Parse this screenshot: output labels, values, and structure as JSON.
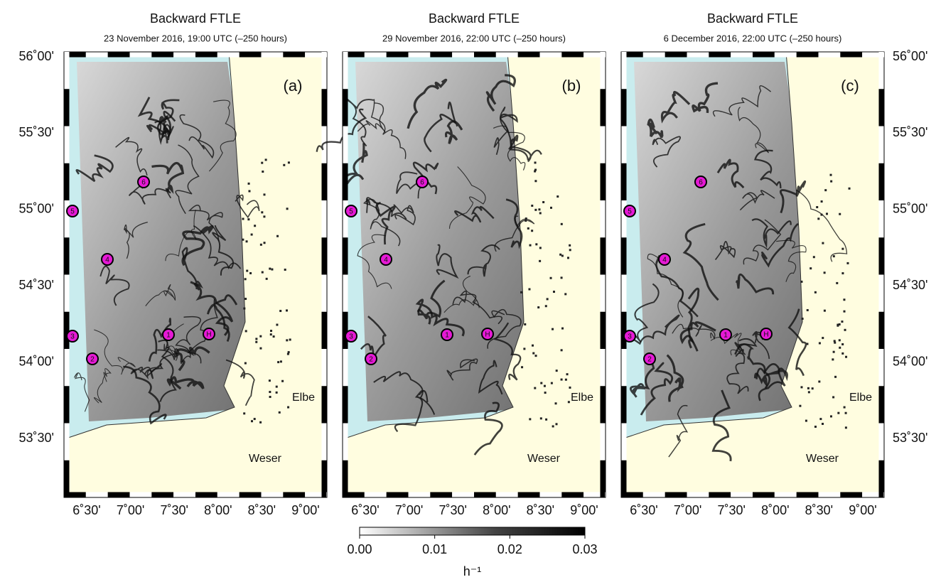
{
  "panels": [
    {
      "title": "Backward FTLE",
      "subtitle": "23 November 2016, 19:00 UTC (–250 hours)",
      "label": "(a)"
    },
    {
      "title": "Backward FTLE",
      "subtitle": "29 November 2016, 22:00 UTC (–250 hours)",
      "label": "(b)"
    },
    {
      "title": "Backward FTLE",
      "subtitle": "6 December 2016, 22:00 UTC (–250 hours)",
      "label": "(c)"
    }
  ],
  "lat_ticks": [
    "56˚00'",
    "55˚30'",
    "55˚00'",
    "54˚30'",
    "54˚00'",
    "53˚30'"
  ],
  "lon_ticks": [
    "6˚30'",
    "7˚00'",
    "7˚30'",
    "8˚00'",
    "8˚30'",
    "9˚00'"
  ],
  "stations": [
    "1",
    "2",
    "3",
    "4",
    "5",
    "6",
    "H"
  ],
  "places": [
    "Elbe",
    "Weser"
  ],
  "colorbar": {
    "lim": [
      0,
      0.03
    ],
    "ticks": [
      {
        "value": 0,
        "label": "0.00"
      },
      {
        "value": 0.01,
        "label": "0.01"
      },
      {
        "value": 0.02,
        "label": "0.02"
      },
      {
        "value": 0.03,
        "label": "0.03"
      }
    ],
    "label": "h⁻¹"
  }
}
